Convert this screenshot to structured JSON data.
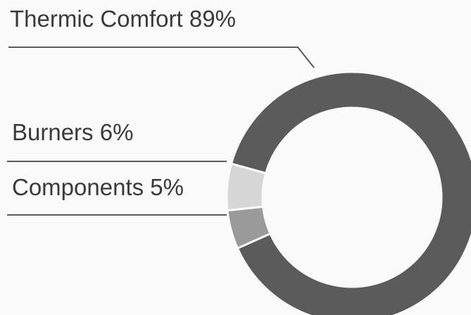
{
  "chart_data": {
    "type": "pie",
    "variant": "donut",
    "slices": [
      {
        "name": "Thermic Comfort",
        "value": 89,
        "label": "Thermic Comfort 89%",
        "color": "#5b5b5b"
      },
      {
        "name": "Burners",
        "value": 6,
        "label": "Burners 6%",
        "color": "#d6d6d6"
      },
      {
        "name": "Components",
        "value": 5,
        "label": "Components 5%",
        "color": "#9a9a9a"
      }
    ],
    "legend": "none"
  }
}
